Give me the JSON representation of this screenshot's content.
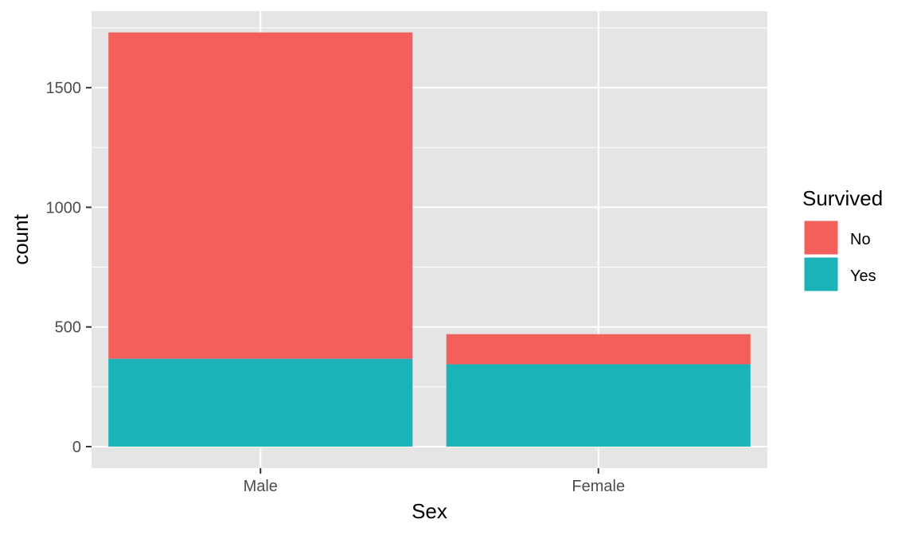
{
  "chart_data": {
    "type": "bar",
    "stacked": true,
    "categories": [
      "Male",
      "Female"
    ],
    "series": [
      {
        "name": "No",
        "values": [
          1364,
          126
        ],
        "color": "#F3605C"
      },
      {
        "name": "Yes",
        "values": [
          367,
          344
        ],
        "color": "#1AB3B8"
      }
    ],
    "xlabel": "Sex",
    "ylabel": "count",
    "ylim": [
      -90,
      1820
    ],
    "yticks": [
      0,
      500,
      1000,
      1500
    ],
    "ytick_labels": [
      "0",
      "500",
      "1000",
      "1500"
    ],
    "grid": true,
    "panel_background": "#E5E5E5",
    "grid_color": "#FFFFFF",
    "legend": {
      "title": "Survived",
      "position": "right",
      "entries": [
        "No",
        "Yes"
      ]
    }
  }
}
